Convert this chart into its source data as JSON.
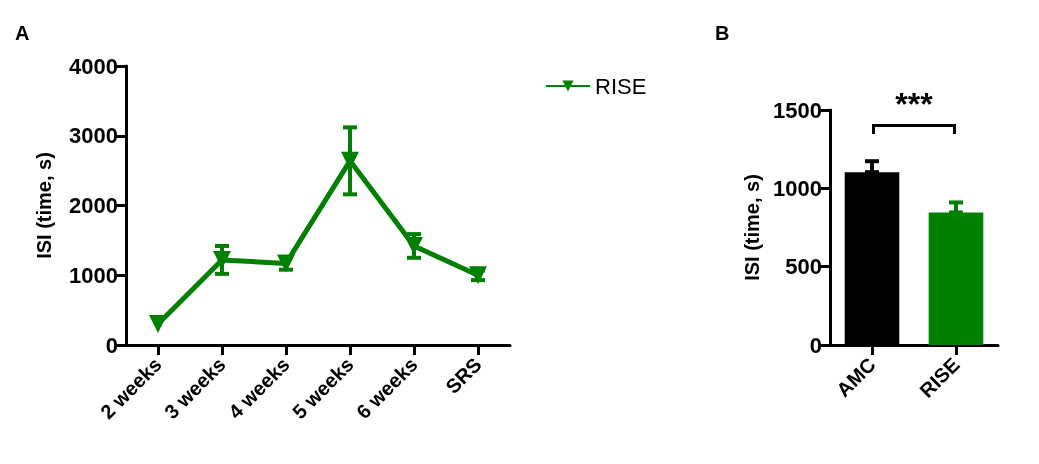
{
  "chart_data": [
    {
      "type": "line",
      "title": "A",
      "ylabel": "ISI (time, s)",
      "categories": [
        "2 weeks",
        "3 weeks",
        "4 weeks",
        "5 weeks",
        "6 weeks",
        "SRS"
      ],
      "series": [
        {
          "name": "RISE",
          "color": "#008000",
          "values": [
            300,
            1220,
            1170,
            2640,
            1420,
            1000
          ],
          "errors": [
            null,
            200,
            90,
            480,
            170,
            70
          ]
        }
      ],
      "ylim": [
        0,
        4000
      ],
      "yticks": [
        0,
        1000,
        2000,
        3000,
        4000
      ],
      "grid": false,
      "legend": "top right",
      "marker": "triangle"
    },
    {
      "type": "bar",
      "title": "B",
      "ylabel": "ISI (time, s)",
      "categories": [
        "AMC",
        "RISE"
      ],
      "values": [
        1103,
        846
      ],
      "colors": [
        "#000000",
        "#008000"
      ],
      "errors": [
        [
          1103,
          1173
        ],
        [
          846,
          910
        ]
      ],
      "ylim": [
        0,
        1500
      ],
      "yticks": [
        0,
        500,
        1000,
        1500
      ],
      "grid": false,
      "legend": false,
      "annotations": [
        "***"
      ]
    }
  ]
}
